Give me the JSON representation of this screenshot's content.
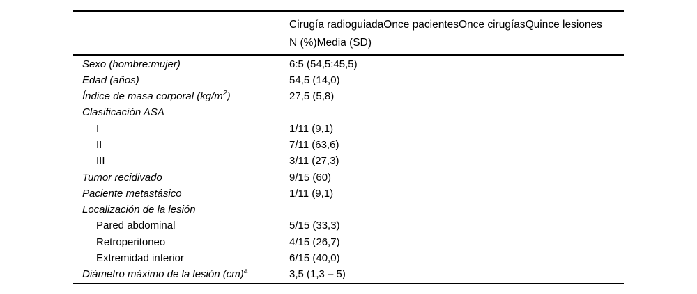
{
  "colors": {
    "text": "#000000",
    "rule": "#000000",
    "background": "#ffffff"
  },
  "table": {
    "header": {
      "col2_line1": "Cirugía radioguiadaOnce pacientesOnce cirugíasQuince lesiones",
      "col2_line2": "N (%)Media (SD)"
    },
    "rows": [
      {
        "label": "Sexo (hombre:mujer)",
        "value": "6:5 (54,5:45,5)"
      },
      {
        "label": "Edad (años)",
        "value": "54,5 (14,0)"
      },
      {
        "label": "Índice de masa corporal (kg/m",
        "label_sup": "2",
        "label_after": ")",
        "value": "27,5 (5,8)"
      },
      {
        "label": "Clasificación ASA",
        "value": ""
      },
      {
        "label": "I",
        "value": "1/11 (9,1)"
      },
      {
        "label": "II",
        "value": "7/11 (63,6)"
      },
      {
        "label": "III",
        "value": "3/11 (27,3)"
      },
      {
        "label": "Tumor recidivado",
        "value": "9/15 (60)"
      },
      {
        "label": "Paciente metastásico",
        "value": "1/11 (9,1)"
      },
      {
        "label": "Localización de la lesión",
        "value": ""
      },
      {
        "label": "Pared abdominal",
        "value": "5/15 (33,3)"
      },
      {
        "label": "Retroperitoneo",
        "value": "4/15 (26,7)"
      },
      {
        "label": "Extremidad inferior",
        "value": "6/15 (40,0)"
      },
      {
        "label": "Diámetro máximo de la lesión (cm)",
        "label_sup": "a",
        "value": "3,5 (1,3 – 5)"
      }
    ]
  }
}
